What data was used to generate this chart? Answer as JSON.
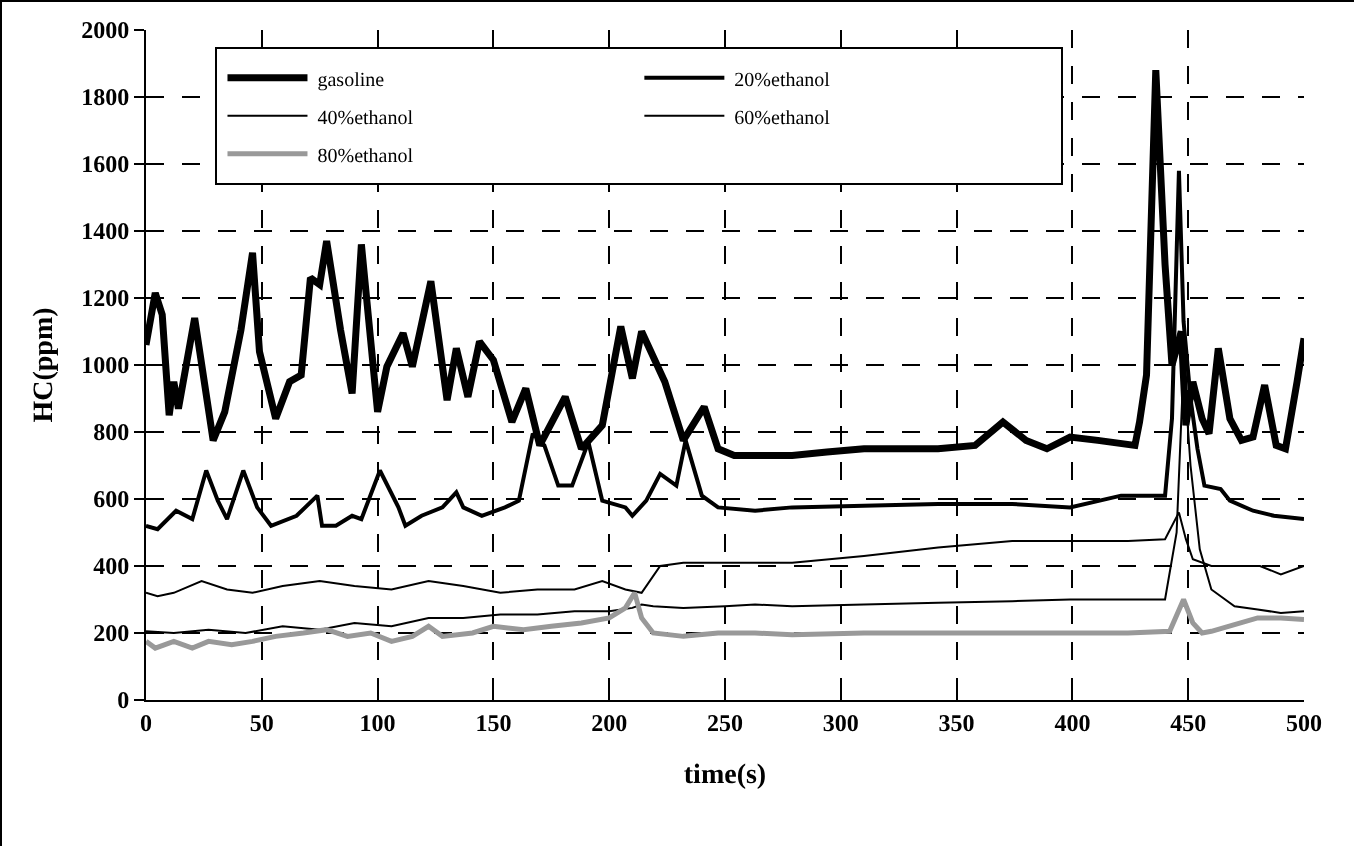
{
  "chart_data": {
    "type": "line",
    "xlabel": "time(s)",
    "ylabel": "HC(ppm)",
    "xlim": [
      0,
      500
    ],
    "xticks": [
      0,
      50,
      100,
      150,
      200,
      250,
      300,
      350,
      400,
      450,
      500
    ],
    "ylim": [
      0,
      2000
    ],
    "yticks": [
      0,
      200,
      400,
      600,
      800,
      1000,
      1200,
      1400,
      1600,
      1800,
      2000
    ],
    "grid": true,
    "legend": "top",
    "marker": "none",
    "line_style": "solid",
    "series": [
      {
        "name": "gasoline",
        "color": "#000000",
        "x": [
          0,
          4,
          7,
          10,
          12,
          14,
          21,
          29,
          34,
          41,
          46,
          49,
          56,
          62,
          67,
          71,
          75,
          78,
          84,
          89,
          93,
          100,
          104,
          111,
          115,
          123,
          130,
          134,
          139,
          144,
          150,
          158,
          164,
          170,
          181,
          188,
          197,
          205,
          210,
          214,
          224,
          232,
          241,
          247,
          254,
          263,
          279,
          294,
          310,
          326,
          342,
          358,
          370,
          380,
          389,
          399,
          411,
          427,
          429,
          432,
          436,
          440,
          443,
          447,
          449,
          452,
          456,
          459,
          463,
          468,
          473,
          478,
          483,
          488,
          492,
          497,
          500
        ],
        "values": [
          1060,
          1215,
          1150,
          850,
          950,
          870,
          1140,
          775,
          860,
          1105,
          1335,
          1040,
          840,
          950,
          970,
          1260,
          1240,
          1370,
          1105,
          915,
          1360,
          860,
          995,
          1095,
          995,
          1250,
          895,
          1050,
          905,
          1070,
          1015,
          830,
          930,
          760,
          905,
          750,
          820,
          1115,
          960,
          1100,
          950,
          775,
          875,
          750,
          730,
          730,
          730,
          740,
          750,
          750,
          750,
          760,
          830,
          775,
          750,
          785,
          775,
          760,
          830,
          970,
          1880,
          1300,
          1000,
          1100,
          820,
          950,
          840,
          795,
          1050,
          840,
          775,
          785,
          940,
          760,
          750,
          950,
          1080
        ]
      },
      {
        "name": "20%ethanol",
        "color": "#000000",
        "x": [
          0,
          5,
          13,
          20,
          26,
          31,
          35,
          42,
          48,
          54,
          65,
          74,
          76,
          82,
          89,
          93,
          101,
          109,
          112,
          119,
          128,
          134,
          137,
          145,
          155,
          161,
          167,
          172,
          178,
          184,
          191,
          197,
          207,
          210,
          216,
          222,
          229,
          233,
          240,
          247,
          263,
          279,
          310,
          342,
          374,
          399,
          421,
          440,
          443,
          446,
          448,
          451,
          454,
          457,
          464,
          468,
          478,
          487,
          500
        ],
        "values": [
          520,
          510,
          565,
          540,
          685,
          595,
          540,
          685,
          575,
          520,
          550,
          610,
          520,
          520,
          550,
          540,
          685,
          575,
          520,
          550,
          575,
          620,
          575,
          550,
          575,
          595,
          795,
          760,
          640,
          640,
          770,
          595,
          575,
          550,
          595,
          675,
          640,
          775,
          610,
          575,
          565,
          575,
          580,
          585,
          585,
          575,
          610,
          610,
          840,
          1580,
          1130,
          900,
          750,
          640,
          630,
          595,
          565,
          550,
          540
        ]
      },
      {
        "name": "40%ethanol",
        "color": "#000000",
        "x": [
          0,
          5,
          12,
          24,
          35,
          46,
          59,
          75,
          90,
          106,
          122,
          137,
          153,
          169,
          185,
          197,
          207,
          214,
          222,
          232,
          247,
          263,
          279,
          310,
          342,
          374,
          399,
          424,
          440,
          446,
          449,
          452,
          460,
          470,
          481,
          490,
          500
        ],
        "values": [
          320,
          310,
          320,
          355,
          330,
          320,
          340,
          355,
          340,
          330,
          355,
          340,
          320,
          330,
          330,
          355,
          330,
          320,
          400,
          410,
          410,
          410,
          410,
          430,
          455,
          475,
          475,
          475,
          480,
          560,
          480,
          420,
          400,
          400,
          400,
          375,
          400
        ]
      },
      {
        "name": "60%ethanol",
        "color": "#000000",
        "x": [
          0,
          12,
          27,
          43,
          59,
          75,
          90,
          106,
          122,
          137,
          153,
          169,
          185,
          200,
          210,
          214,
          219,
          232,
          250,
          263,
          279,
          310,
          342,
          374,
          399,
          424,
          440,
          445,
          448,
          451,
          455,
          460,
          470,
          480,
          490,
          500
        ],
        "values": [
          205,
          200,
          210,
          200,
          220,
          210,
          230,
          220,
          245,
          245,
          255,
          255,
          265,
          265,
          275,
          285,
          280,
          275,
          280,
          285,
          280,
          285,
          290,
          295,
          300,
          300,
          300,
          500,
          1000,
          700,
          450,
          330,
          280,
          270,
          260,
          265
        ]
      },
      {
        "name": "80%ethanol",
        "color": "#999999",
        "x": [
          0,
          4,
          12,
          20,
          27,
          37,
          46,
          56,
          68,
          78,
          87,
          97,
          106,
          115,
          122,
          128,
          141,
          150,
          163,
          175,
          188,
          200,
          207,
          211,
          214,
          219,
          232,
          247,
          263,
          279,
          310,
          342,
          374,
          399,
          424,
          442,
          448,
          452,
          456,
          460,
          470,
          480,
          490,
          500
        ],
        "values": [
          175,
          155,
          175,
          155,
          175,
          165,
          175,
          190,
          200,
          210,
          190,
          200,
          175,
          190,
          220,
          190,
          200,
          220,
          210,
          220,
          230,
          245,
          275,
          320,
          245,
          200,
          190,
          200,
          200,
          195,
          200,
          200,
          200,
          200,
          200,
          205,
          300,
          230,
          200,
          205,
          225,
          245,
          245,
          240
        ]
      }
    ]
  }
}
